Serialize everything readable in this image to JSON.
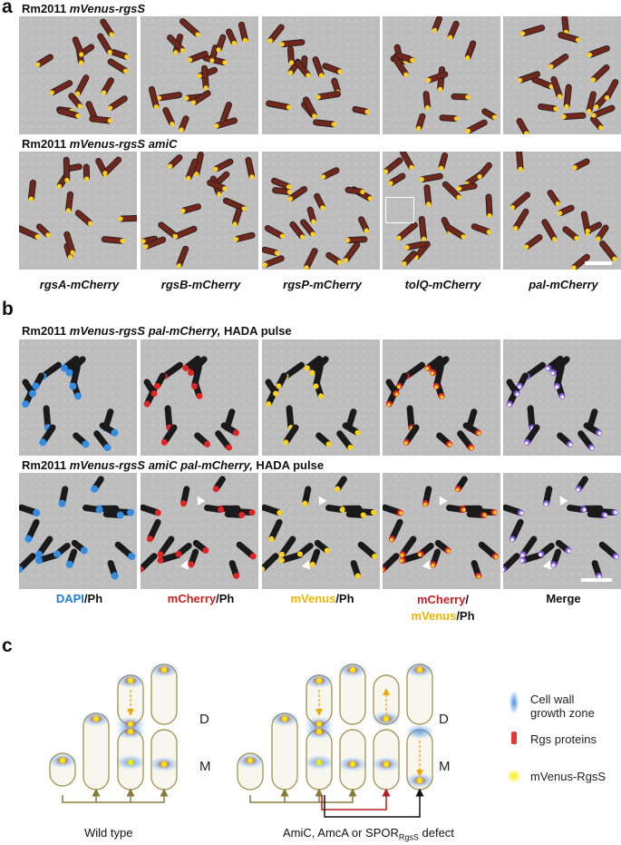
{
  "panel_a": {
    "label": "a",
    "row1_strain_prefix": "Rm2011 ",
    "row1_strain_italic": "mVenus-rgsS",
    "row2_strain_prefix": "Rm2011 ",
    "row2_strain_italic": "mVenus-rgsS amiC",
    "captions": [
      "rgsA-mCherry",
      "rgsB-mCherry",
      "rgsP-mCherry",
      "tolQ-mCherry",
      "pal-mCherry"
    ]
  },
  "panel_b": {
    "label": "b",
    "row1_strain_prefix": "Rm2011 ",
    "row1_strain_italic": "mVenus-rgsS pal-mCherry,",
    "row1_strain_suffix": " HADA pulse",
    "row2_strain_prefix": "Rm2011 ",
    "row2_strain_italic": "mVenus-rgsS amiC pal-mCherry,",
    "row2_strain_suffix": " HADA pulse",
    "captions": {
      "dapi": "DAPI",
      "dapi_ph": "/Ph",
      "mcherry": "mCherry",
      "mcherry_ph": "/Ph",
      "mvenus": "mVenus",
      "mvenus_ph": "/Ph",
      "combo_top": "mCherry",
      "combo_slash": "/",
      "combo_bottom": "mVenus",
      "combo_ph": "/Ph",
      "merge": "Merge"
    }
  },
  "panel_c": {
    "label": "c",
    "d_label": "D",
    "m_label": "M",
    "wt_label": "Wild type",
    "defect_label_prefix": "AmiC, AmcA or SPOR",
    "defect_label_sub": "RgsS",
    "defect_label_suffix": " defect",
    "legend": [
      {
        "line1": "Cell wall",
        "line2": "growth zone",
        "color": "#4a90e2"
      },
      {
        "line1": "Rgs proteins",
        "line2": "",
        "color": "#e53935"
      },
      {
        "line1": "mVenus-RgsS",
        "line2": "",
        "color": "#f5e400"
      }
    ],
    "arrow_colors": {
      "wt": "#8a7a3a",
      "red": "#b71c1c",
      "black": "#111111",
      "dashed": "#f0a500"
    }
  }
}
